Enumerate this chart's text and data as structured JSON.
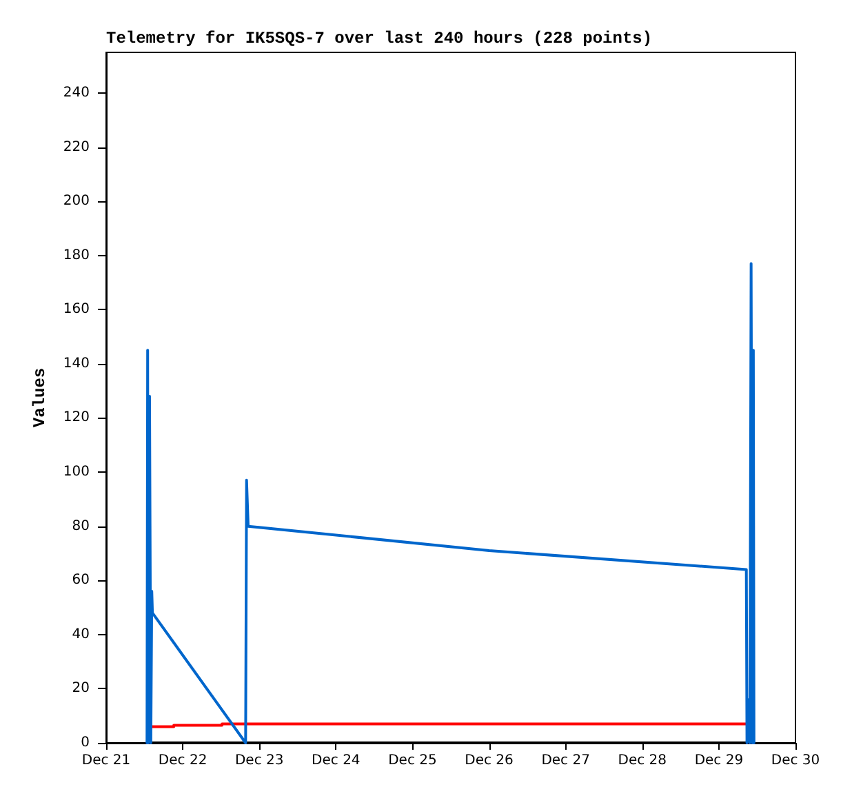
{
  "chart_data": {
    "type": "line",
    "title": "Telemetry for IK5SQS-7 over last 240 hours (228 points)",
    "ylabel": "Values",
    "xlim": [
      "--12-21",
      "--12-30"
    ],
    "xticks": [
      {
        "value": "--12-21",
        "label": "Dec 21"
      },
      {
        "value": "--12-22",
        "label": "Dec 22"
      },
      {
        "value": "--12-23",
        "label": "Dec 23"
      },
      {
        "value": "--12-24",
        "label": "Dec 24"
      },
      {
        "value": "--12-25",
        "label": "Dec 25"
      },
      {
        "value": "--12-26",
        "label": "Dec 26"
      },
      {
        "value": "--12-27",
        "label": "Dec 27"
      },
      {
        "value": "--12-28",
        "label": "Dec 28"
      },
      {
        "value": "--12-29",
        "label": "Dec 29"
      },
      {
        "value": "--12-30",
        "label": "Dec 30"
      }
    ],
    "ylim": [
      0,
      255
    ],
    "yticks": [
      0,
      20,
      40,
      60,
      80,
      100,
      120,
      140,
      160,
      180,
      200,
      220,
      240
    ],
    "grid": false,
    "marker": "none",
    "line_style": "solid",
    "series": [
      {
        "color": "#000000",
        "x": [
          "--12-21T12:48",
          "--12-29T11:00"
        ],
        "values": [
          0,
          0
        ]
      },
      {
        "color": "#ff0000",
        "x": [
          "--12-21T14:18",
          "--12-21T21:12",
          "--12-21T21:12",
          "--12-22T12:18",
          "--12-22T12:18",
          "--12-29T08:36"
        ],
        "values": [
          6,
          6,
          6.5,
          6.5,
          7,
          7
        ]
      },
      {
        "color": "#0066cc",
        "x": [
          "--12-21T12:48",
          "--12-21T13:00",
          "--12-21T13:12",
          "--12-21T13:36",
          "--12-21T14:00",
          "--12-21T14:18",
          "--12-21T14:30",
          "--12-22T19:42",
          "--12-22T20:00",
          "--12-22T20:30",
          "--12-26T00:00",
          "--12-29T08:36",
          "--12-29T08:48",
          "--12-29T09:18",
          "--12-29T09:42",
          "--12-29T10:06",
          "--12-29T10:30",
          "--12-29T10:48",
          "--12-29T11:00"
        ],
        "values": [
          0,
          145,
          0,
          128,
          0,
          56,
          48,
          0,
          97,
          80,
          71,
          64,
          0,
          16,
          0,
          177,
          0,
          145,
          0
        ]
      }
    ]
  }
}
